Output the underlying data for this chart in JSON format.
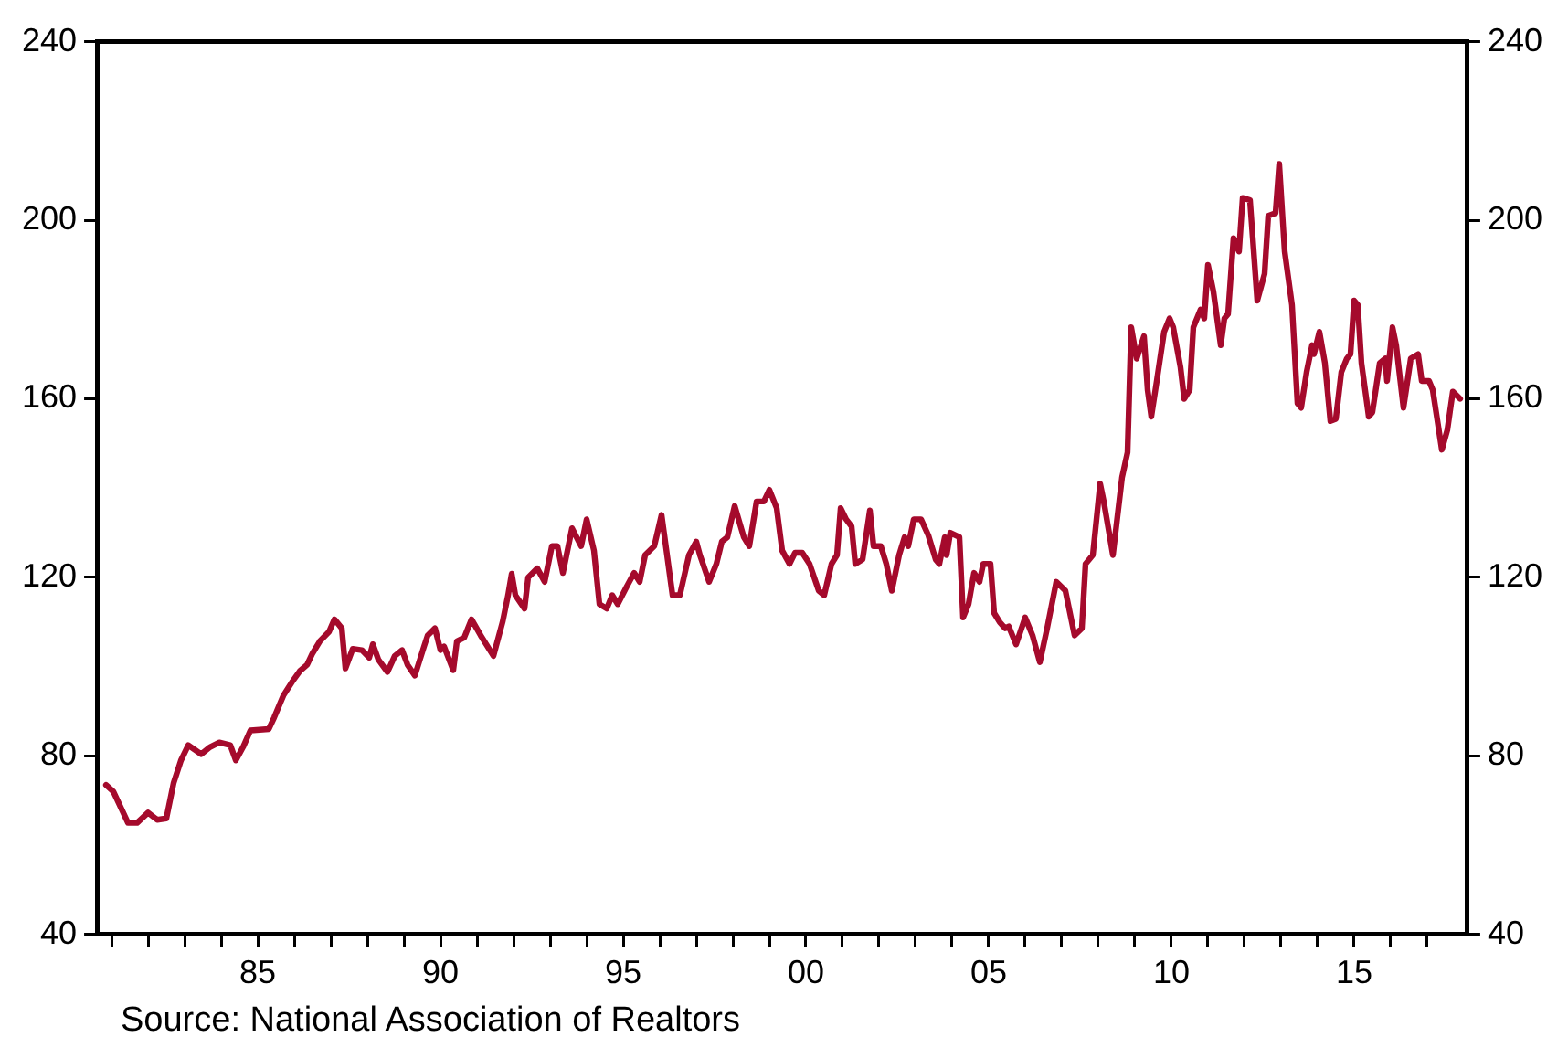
{
  "chart_data": {
    "type": "line",
    "x": [
      1980.85,
      1981.05,
      1981.45,
      1981.7,
      1982.0,
      1982.25,
      1982.5,
      1982.7,
      1982.9,
      1983.1,
      1983.45,
      1983.7,
      1983.95,
      1984.25,
      1984.4,
      1984.6,
      1984.8,
      1985.3,
      1985.45,
      1985.7,
      1985.95,
      1986.15,
      1986.35,
      1986.5,
      1986.7,
      1986.95,
      1987.1,
      1987.3,
      1987.4,
      1987.6,
      1987.85,
      1988.05,
      1988.15,
      1988.3,
      1988.55,
      1988.75,
      1988.95,
      1989.1,
      1989.3,
      1989.55,
      1989.65,
      1989.85,
      1990.0,
      1990.1,
      1990.35,
      1990.45,
      1990.65,
      1990.85,
      1991.1,
      1991.45,
      1991.7,
      1991.85,
      1991.95,
      1992.05,
      1992.3,
      1992.4,
      1992.65,
      1992.85,
      1993.05,
      1993.2,
      1993.35,
      1993.6,
      1993.85,
      1994.0,
      1994.2,
      1994.35,
      1994.55,
      1994.7,
      1994.85,
      1995.1,
      1995.3,
      1995.45,
      1995.6,
      1995.85,
      1996.05,
      1996.2,
      1996.35,
      1996.55,
      1996.8,
      1997.0,
      1997.1,
      1997.35,
      1997.55,
      1997.7,
      1997.85,
      1998.05,
      1998.3,
      1998.45,
      1998.65,
      1998.85,
      1999.0,
      1999.2,
      1999.35,
      1999.55,
      1999.7,
      1999.9,
      2000.1,
      2000.35,
      2000.5,
      2000.7,
      2000.85,
      2000.95,
      2001.1,
      2001.25,
      2001.35,
      2001.55,
      2001.75,
      2001.85,
      2002.05,
      2002.2,
      2002.35,
      2002.55,
      2002.7,
      2002.8,
      2002.95,
      2003.15,
      2003.35,
      2003.55,
      2003.65,
      2003.8,
      2003.85,
      2003.95,
      2004.2,
      2004.3,
      2004.45,
      2004.6,
      2004.75,
      2004.85,
      2005.05,
      2005.15,
      2005.3,
      2005.45,
      2005.55,
      2005.75,
      2006.0,
      2006.2,
      2006.4,
      2006.6,
      2006.85,
      2007.1,
      2007.35,
      2007.55,
      2007.65,
      2007.85,
      2008.05,
      2008.15,
      2008.4,
      2008.65,
      2008.8,
      2008.9,
      2009.05,
      2009.25,
      2009.35,
      2009.45,
      2009.6,
      2009.8,
      2009.95,
      2010.05,
      2010.25,
      2010.35,
      2010.5,
      2010.6,
      2010.8,
      2010.9,
      2011.0,
      2011.15,
      2011.35,
      2011.45,
      2011.55,
      2011.7,
      2011.85,
      2011.95,
      2012.15,
      2012.35,
      2012.55,
      2012.65,
      2012.85,
      2012.95,
      2013.1,
      2013.3,
      2013.45,
      2013.55,
      2013.7,
      2013.85,
      2013.9,
      2014.05,
      2014.2,
      2014.35,
      2014.5,
      2014.65,
      2014.8,
      2014.9,
      2015.0,
      2015.1,
      2015.2,
      2015.4,
      2015.5,
      2015.7,
      2015.85,
      2015.9,
      2016.05,
      2016.15,
      2016.35,
      2016.55,
      2016.75,
      2016.85,
      2017.05,
      2017.15,
      2017.4,
      2017.55,
      2017.7,
      2017.9
    ],
    "series": [
      {
        "color": "#a50a2c",
        "values": [
          73.5,
          72,
          65,
          65,
          67.3,
          65.7,
          66,
          74,
          79,
          82.4,
          80.4,
          82,
          83,
          82.4,
          79,
          82,
          85.7,
          86,
          88.6,
          93.5,
          96.7,
          99,
          100.4,
          103,
          105.7,
          107.8,
          110.6,
          108.6,
          99.6,
          104,
          103.7,
          102,
          105,
          101.6,
          98.8,
          102.4,
          103.7,
          100.4,
          98,
          104.5,
          107,
          108.6,
          103.7,
          104.5,
          99.2,
          105.7,
          106.5,
          110.6,
          107,
          102.4,
          110,
          116,
          120.8,
          116,
          113,
          120,
          122,
          119,
          127,
          127,
          121,
          131,
          127,
          133,
          126,
          114,
          113,
          116,
          114,
          118,
          121,
          119,
          125,
          127,
          134,
          125,
          116,
          116,
          125,
          128,
          125,
          119,
          123,
          128,
          129,
          136,
          129,
          127,
          137,
          137,
          139.6,
          135.5,
          126,
          123,
          125.5,
          125.5,
          123,
          117,
          116,
          123,
          125,
          135.5,
          133,
          131.4,
          123,
          124,
          135,
          127,
          127,
          123,
          117,
          125,
          129,
          127,
          133,
          133,
          129.4,
          124,
          123,
          129,
          125,
          130,
          129,
          111,
          114,
          121,
          119,
          123,
          123,
          112,
          110,
          108.6,
          109,
          105,
          111,
          107,
          101,
          108.6,
          119,
          117,
          107,
          108.6,
          123,
          125,
          141,
          137,
          125,
          142.4,
          148,
          176,
          169,
          174,
          162,
          156,
          164,
          175,
          178,
          176,
          167,
          160,
          162,
          176,
          180,
          178,
          190,
          184,
          172,
          178,
          179,
          196,
          193,
          205,
          204.5,
          182,
          188,
          201,
          201.6,
          212.6,
          193,
          181,
          159,
          158,
          166,
          172,
          170,
          175,
          168,
          155,
          155.5,
          166,
          169,
          170,
          182,
          181,
          168,
          156,
          157,
          168,
          169,
          164,
          176,
          172,
          158,
          169,
          170,
          164,
          164,
          162,
          148.6,
          153,
          161.6,
          160
        ]
      }
    ],
    "xlim": [
      1980.6,
      2018.1
    ],
    "xticks": [
      {
        "value": 1981,
        "label": null
      },
      {
        "value": 1982,
        "label": null
      },
      {
        "value": 1983,
        "label": null
      },
      {
        "value": 1984,
        "label": null
      },
      {
        "value": 1985,
        "label": "85"
      },
      {
        "value": 1986,
        "label": null
      },
      {
        "value": 1987,
        "label": null
      },
      {
        "value": 1988,
        "label": null
      },
      {
        "value": 1989,
        "label": null
      },
      {
        "value": 1990,
        "label": "90"
      },
      {
        "value": 1991,
        "label": null
      },
      {
        "value": 1992,
        "label": null
      },
      {
        "value": 1993,
        "label": null
      },
      {
        "value": 1994,
        "label": null
      },
      {
        "value": 1995,
        "label": "95"
      },
      {
        "value": 1996,
        "label": null
      },
      {
        "value": 1997,
        "label": null
      },
      {
        "value": 1998,
        "label": null
      },
      {
        "value": 1999,
        "label": null
      },
      {
        "value": 2000,
        "label": "00"
      },
      {
        "value": 2001,
        "label": null
      },
      {
        "value": 2002,
        "label": null
      },
      {
        "value": 2003,
        "label": null
      },
      {
        "value": 2004,
        "label": null
      },
      {
        "value": 2005,
        "label": "05"
      },
      {
        "value": 2006,
        "label": null
      },
      {
        "value": 2007,
        "label": null
      },
      {
        "value": 2008,
        "label": null
      },
      {
        "value": 2009,
        "label": null
      },
      {
        "value": 2010,
        "label": "10"
      },
      {
        "value": 2011,
        "label": null
      },
      {
        "value": 2012,
        "label": null
      },
      {
        "value": 2013,
        "label": null
      },
      {
        "value": 2014,
        "label": null
      },
      {
        "value": 2015,
        "label": "15"
      },
      {
        "value": 2016,
        "label": null
      },
      {
        "value": 2017,
        "label": null
      }
    ],
    "ylim": [
      40,
      240
    ],
    "yticks": [
      40,
      80,
      120,
      160,
      200,
      240
    ],
    "y2lim": [
      40,
      240
    ],
    "y2ticks": [
      40,
      80,
      120,
      160,
      200,
      240
    ],
    "marker": "none",
    "line_style": "solid",
    "grid": false,
    "legend": false,
    "annotations": [
      "Source:  National Association of Realtors"
    ]
  }
}
